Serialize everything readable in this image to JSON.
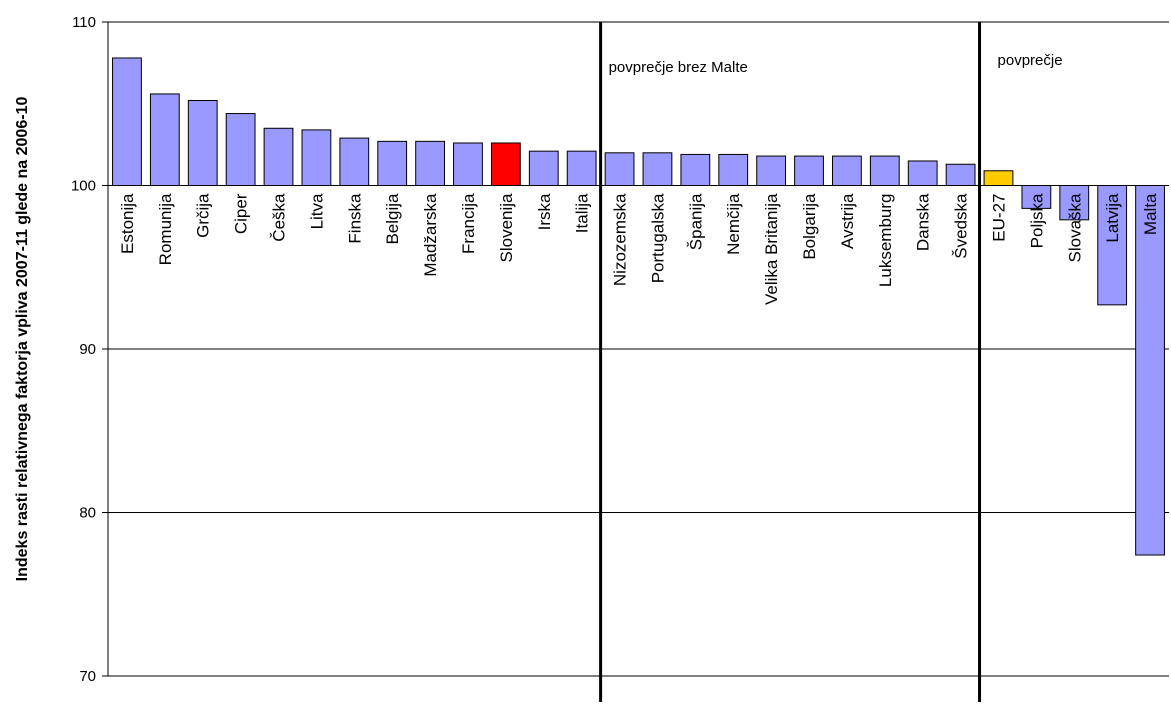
{
  "chart_data": {
    "type": "bar",
    "title": "",
    "xlabel": "",
    "ylabel": "Indeks rasti relativnega faktorja vpliva 2007-11 glede na 2006-10",
    "ylim": [
      70,
      110
    ],
    "yticks": [
      70,
      80,
      90,
      100,
      110
    ],
    "baseline": 100,
    "grid": true,
    "categories": [
      "Estonija",
      "Romunija",
      "Grčija",
      "Ciper",
      "Češka",
      "Litva",
      "Finska",
      "Belgija",
      "Madžarska",
      "Francija",
      "Slovenija",
      "Irska",
      "Italija",
      "Nizozemska",
      "Portugalska",
      "Španija",
      "Nemčija",
      "Velika Britanija",
      "Bolgarija",
      "Avstrija",
      "Luksemburg",
      "Danska",
      "Švedska",
      "EU-27",
      "Poljska",
      "Slovaška",
      "Latvija",
      "Malta"
    ],
    "values": [
      107.8,
      105.6,
      105.2,
      104.4,
      103.5,
      103.4,
      102.9,
      102.7,
      102.7,
      102.6,
      102.6,
      102.1,
      102.1,
      102.0,
      102.0,
      101.9,
      101.9,
      101.8,
      101.8,
      101.8,
      101.8,
      101.5,
      101.3,
      100.9,
      98.6,
      97.9,
      92.7,
      77.4
    ],
    "bar_colors": [
      "#9999ff",
      "#9999ff",
      "#9999ff",
      "#9999ff",
      "#9999ff",
      "#9999ff",
      "#9999ff",
      "#9999ff",
      "#9999ff",
      "#9999ff",
      "#ff0000",
      "#9999ff",
      "#9999ff",
      "#9999ff",
      "#9999ff",
      "#9999ff",
      "#9999ff",
      "#9999ff",
      "#9999ff",
      "#9999ff",
      "#9999ff",
      "#9999ff",
      "#9999ff",
      "#ffcc00",
      "#9999ff",
      "#9999ff",
      "#9999ff",
      "#9999ff"
    ],
    "reference_lines": [
      {
        "after_category": "Italija",
        "label": "povprečje brez Malte"
      },
      {
        "after_category": "Švedska",
        "label": "povprečje"
      }
    ]
  }
}
